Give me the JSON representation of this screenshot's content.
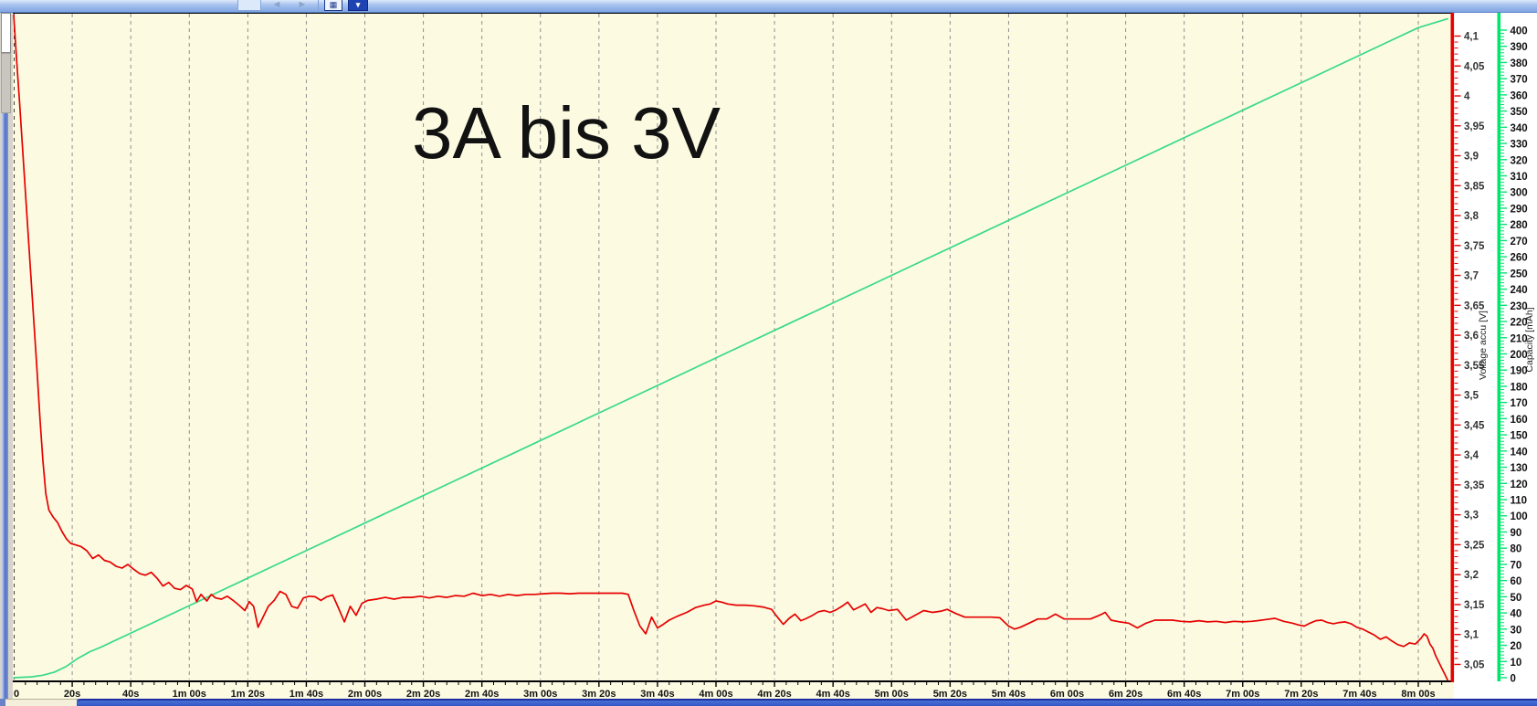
{
  "window": {
    "toolbar": {
      "back_icon": "◄",
      "forward_icon": "►",
      "grid_icon": "▦",
      "overflow_icon": "▾"
    }
  },
  "annotation": {
    "title": "3A bis 3V"
  },
  "colors": {
    "plot_background": "#fcfbe2",
    "voltage_red": "#e60000",
    "capacity_green": "#38d98a",
    "capacity_axis_green": "#00e56e",
    "gridline_gray": "#8f8f8f",
    "axis_black": "#000000",
    "titlebar_blue": "#7fa5e2",
    "taskbar_blue": "#3157c4"
  },
  "chart_data": {
    "type": "line",
    "title": "3A bis 3V",
    "plot_background": "#fcfbe2",
    "grid": "vertical-dashed",
    "x_axis": {
      "unit": "time",
      "range_s": [
        0,
        490
      ],
      "minor_tick_step_s": 4,
      "ticks": [
        {
          "t": 0,
          "label": "0"
        },
        {
          "t": 20,
          "label": "20s"
        },
        {
          "t": 40,
          "label": "40s"
        },
        {
          "t": 60,
          "label": "1m 00s"
        },
        {
          "t": 80,
          "label": "1m 20s"
        },
        {
          "t": 100,
          "label": "1m 40s"
        },
        {
          "t": 120,
          "label": "2m 00s"
        },
        {
          "t": 140,
          "label": "2m 20s"
        },
        {
          "t": 160,
          "label": "2m 40s"
        },
        {
          "t": 180,
          "label": "3m 00s"
        },
        {
          "t": 200,
          "label": "3m 20s"
        },
        {
          "t": 220,
          "label": "3m 40s"
        },
        {
          "t": 240,
          "label": "4m 00s"
        },
        {
          "t": 260,
          "label": "4m 20s"
        },
        {
          "t": 280,
          "label": "4m 40s"
        },
        {
          "t": 300,
          "label": "5m 00s"
        },
        {
          "t": 320,
          "label": "5m 20s"
        },
        {
          "t": 340,
          "label": "5m 40s"
        },
        {
          "t": 360,
          "label": "6m 00s"
        },
        {
          "t": 380,
          "label": "6m 20s"
        },
        {
          "t": 400,
          "label": "6m 40s"
        },
        {
          "t": 420,
          "label": "7m 00s"
        },
        {
          "t": 440,
          "label": "7m 20s"
        },
        {
          "t": 460,
          "label": "7m 40s"
        },
        {
          "t": 480,
          "label": "8m 00s"
        }
      ]
    },
    "voltage_axis": {
      "title": "Voltage accu [V]",
      "color": "#e60000",
      "range": [
        3.02,
        4.138
      ],
      "major_tick_step": 0.05,
      "minor_tick_step": 0.01,
      "ticks": [
        {
          "v": 4.1,
          "label": "4,1"
        },
        {
          "v": 4.05,
          "label": "4,05"
        },
        {
          "v": 4.0,
          "label": "4"
        },
        {
          "v": 3.95,
          "label": "3,95"
        },
        {
          "v": 3.9,
          "label": "3,9"
        },
        {
          "v": 3.85,
          "label": "3,85"
        },
        {
          "v": 3.8,
          "label": "3,8"
        },
        {
          "v": 3.75,
          "label": "3,75"
        },
        {
          "v": 3.7,
          "label": "3,7"
        },
        {
          "v": 3.65,
          "label": "3,65"
        },
        {
          "v": 3.6,
          "label": "3,6"
        },
        {
          "v": 3.55,
          "label": "3,55"
        },
        {
          "v": 3.5,
          "label": "3,5"
        },
        {
          "v": 3.45,
          "label": "3,45"
        },
        {
          "v": 3.4,
          "label": "3,4"
        },
        {
          "v": 3.35,
          "label": "3,35"
        },
        {
          "v": 3.3,
          "label": "3,3"
        },
        {
          "v": 3.25,
          "label": "3,25"
        },
        {
          "v": 3.2,
          "label": "3,2"
        },
        {
          "v": 3.15,
          "label": "3,15"
        },
        {
          "v": 3.1,
          "label": "3,1"
        },
        {
          "v": 3.05,
          "label": "3,05"
        }
      ]
    },
    "capacity_axis": {
      "title": "Capacity [mAh]",
      "color": "#00e56e",
      "range": [
        0,
        411
      ],
      "major_tick_step": 10,
      "minor_tick_step": 2,
      "tick_values": [
        400,
        390,
        380,
        370,
        360,
        350,
        340,
        330,
        320,
        310,
        300,
        290,
        280,
        270,
        260,
        250,
        240,
        230,
        220,
        210,
        200,
        190,
        180,
        170,
        160,
        150,
        140,
        130,
        120,
        110,
        100,
        90,
        80,
        70,
        60,
        50,
        40,
        30,
        20,
        10,
        0
      ]
    },
    "series": [
      {
        "name": "Voltage accu [V]",
        "axis": "voltage",
        "color": "#e60000",
        "points": [
          [
            0,
            4.135
          ],
          [
            1,
            4.06
          ],
          [
            2,
            3.99
          ],
          [
            3,
            3.915
          ],
          [
            4,
            3.84
          ],
          [
            5,
            3.765
          ],
          [
            6,
            3.69
          ],
          [
            7,
            3.615
          ],
          [
            8,
            3.54
          ],
          [
            9,
            3.46
          ],
          [
            10,
            3.39
          ],
          [
            11,
            3.335
          ],
          [
            12,
            3.308
          ],
          [
            13.5,
            3.296
          ],
          [
            15,
            3.287
          ],
          [
            16.5,
            3.272
          ],
          [
            18,
            3.26
          ],
          [
            19.5,
            3.252
          ],
          [
            21,
            3.25
          ],
          [
            23,
            3.247
          ],
          [
            25,
            3.24
          ],
          [
            27,
            3.227
          ],
          [
            29,
            3.233
          ],
          [
            31,
            3.224
          ],
          [
            33,
            3.221
          ],
          [
            35,
            3.214
          ],
          [
            37,
            3.211
          ],
          [
            39,
            3.217
          ],
          [
            41,
            3.209
          ],
          [
            43,
            3.202
          ],
          [
            45,
            3.199
          ],
          [
            47,
            3.204
          ],
          [
            49,
            3.194
          ],
          [
            51,
            3.181
          ],
          [
            53,
            3.187
          ],
          [
            55,
            3.177
          ],
          [
            57,
            3.175
          ],
          [
            59,
            3.182
          ],
          [
            61,
            3.176
          ],
          [
            62.5,
            3.155
          ],
          [
            64,
            3.167
          ],
          [
            66,
            3.156
          ],
          [
            67.5,
            3.167
          ],
          [
            69,
            3.161
          ],
          [
            71,
            3.159
          ],
          [
            73,
            3.164
          ],
          [
            75,
            3.157
          ],
          [
            77,
            3.149
          ],
          [
            79,
            3.14
          ],
          [
            80.5,
            3.155
          ],
          [
            82,
            3.147
          ],
          [
            83.5,
            3.112
          ],
          [
            85,
            3.127
          ],
          [
            87,
            3.147
          ],
          [
            89,
            3.157
          ],
          [
            91,
            3.172
          ],
          [
            93,
            3.167
          ],
          [
            95,
            3.147
          ],
          [
            97,
            3.144
          ],
          [
            99,
            3.161
          ],
          [
            101,
            3.164
          ],
          [
            103,
            3.163
          ],
          [
            105,
            3.157
          ],
          [
            107,
            3.163
          ],
          [
            109,
            3.166
          ],
          [
            111,
            3.144
          ],
          [
            113,
            3.121
          ],
          [
            115,
            3.147
          ],
          [
            117,
            3.132
          ],
          [
            119,
            3.152
          ],
          [
            121,
            3.157
          ],
          [
            124,
            3.159
          ],
          [
            127,
            3.162
          ],
          [
            130,
            3.159
          ],
          [
            133,
            3.162
          ],
          [
            136,
            3.162
          ],
          [
            139,
            3.164
          ],
          [
            142,
            3.161
          ],
          [
            145,
            3.164
          ],
          [
            148,
            3.162
          ],
          [
            151,
            3.165
          ],
          [
            154,
            3.164
          ],
          [
            157,
            3.169
          ],
          [
            160,
            3.165
          ],
          [
            163,
            3.167
          ],
          [
            166,
            3.164
          ],
          [
            169,
            3.167
          ],
          [
            172,
            3.165
          ],
          [
            175,
            3.167
          ],
          [
            178,
            3.167
          ],
          [
            181,
            3.168
          ],
          [
            184,
            3.169
          ],
          [
            187,
            3.169
          ],
          [
            190,
            3.168
          ],
          [
            193,
            3.169
          ],
          [
            196,
            3.169
          ],
          [
            199,
            3.169
          ],
          [
            202,
            3.169
          ],
          [
            205,
            3.169
          ],
          [
            208,
            3.169
          ],
          [
            210,
            3.167
          ],
          [
            212,
            3.139
          ],
          [
            214,
            3.114
          ],
          [
            216,
            3.101
          ],
          [
            218,
            3.129
          ],
          [
            220,
            3.111
          ],
          [
            222,
            3.117
          ],
          [
            224,
            3.124
          ],
          [
            227,
            3.131
          ],
          [
            230,
            3.137
          ],
          [
            233,
            3.145
          ],
          [
            236,
            3.149
          ],
          [
            238,
            3.151
          ],
          [
            240,
            3.156
          ],
          [
            242,
            3.154
          ],
          [
            244,
            3.151
          ],
          [
            247,
            3.149
          ],
          [
            250,
            3.149
          ],
          [
            253,
            3.148
          ],
          [
            256,
            3.146
          ],
          [
            259,
            3.142
          ],
          [
            261,
            3.129
          ],
          [
            263,
            3.117
          ],
          [
            265,
            3.127
          ],
          [
            267,
            3.134
          ],
          [
            269,
            3.123
          ],
          [
            271,
            3.127
          ],
          [
            273,
            3.132
          ],
          [
            275,
            3.138
          ],
          [
            277,
            3.14
          ],
          [
            279,
            3.137
          ],
          [
            281,
            3.141
          ],
          [
            283,
            3.147
          ],
          [
            285,
            3.154
          ],
          [
            287,
            3.141
          ],
          [
            289,
            3.146
          ],
          [
            291,
            3.151
          ],
          [
            293,
            3.137
          ],
          [
            295,
            3.145
          ],
          [
            297,
            3.143
          ],
          [
            299,
            3.14
          ],
          [
            302,
            3.142
          ],
          [
            305,
            3.124
          ],
          [
            308,
            3.132
          ],
          [
            311,
            3.14
          ],
          [
            314,
            3.137
          ],
          [
            317,
            3.139
          ],
          [
            319,
            3.142
          ],
          [
            322,
            3.135
          ],
          [
            325,
            3.129
          ],
          [
            328,
            3.129
          ],
          [
            331,
            3.129
          ],
          [
            334,
            3.129
          ],
          [
            337,
            3.128
          ],
          [
            340,
            3.114
          ],
          [
            342,
            3.109
          ],
          [
            344,
            3.112
          ],
          [
            347,
            3.119
          ],
          [
            350,
            3.126
          ],
          [
            353,
            3.126
          ],
          [
            356,
            3.134
          ],
          [
            359,
            3.126
          ],
          [
            362,
            3.126
          ],
          [
            365,
            3.126
          ],
          [
            368,
            3.126
          ],
          [
            371,
            3.132
          ],
          [
            373,
            3.137
          ],
          [
            375,
            3.124
          ],
          [
            378,
            3.121
          ],
          [
            381,
            3.119
          ],
          [
            384,
            3.111
          ],
          [
            387,
            3.119
          ],
          [
            390,
            3.124
          ],
          [
            393,
            3.124
          ],
          [
            396,
            3.124
          ],
          [
            399,
            3.122
          ],
          [
            402,
            3.121
          ],
          [
            405,
            3.123
          ],
          [
            408,
            3.121
          ],
          [
            411,
            3.122
          ],
          [
            414,
            3.12
          ],
          [
            417,
            3.122
          ],
          [
            420,
            3.121
          ],
          [
            423,
            3.122
          ],
          [
            425,
            3.123
          ],
          [
            428,
            3.125
          ],
          [
            431,
            3.127
          ],
          [
            434,
            3.122
          ],
          [
            437,
            3.119
          ],
          [
            439,
            3.116
          ],
          [
            441,
            3.114
          ],
          [
            443,
            3.119
          ],
          [
            445,
            3.123
          ],
          [
            447,
            3.124
          ],
          [
            449,
            3.12
          ],
          [
            451,
            3.118
          ],
          [
            453,
            3.12
          ],
          [
            455,
            3.121
          ],
          [
            457,
            3.118
          ],
          [
            459,
            3.112
          ],
          [
            461,
            3.109
          ],
          [
            463,
            3.104
          ],
          [
            465,
            3.099
          ],
          [
            467,
            3.092
          ],
          [
            469,
            3.096
          ],
          [
            471,
            3.089
          ],
          [
            473,
            3.083
          ],
          [
            475,
            3.08
          ],
          [
            477,
            3.086
          ],
          [
            479,
            3.084
          ],
          [
            481,
            3.094
          ],
          [
            482,
            3.101
          ],
          [
            483,
            3.097
          ],
          [
            484,
            3.084
          ],
          [
            485,
            3.077
          ],
          [
            486,
            3.064
          ],
          [
            487,
            3.054
          ],
          [
            488,
            3.044
          ],
          [
            489,
            3.034
          ],
          [
            490,
            3.024
          ]
        ]
      },
      {
        "name": "Capacity [mAh]",
        "axis": "capacity",
        "color": "#38d98a",
        "points": [
          [
            0,
            0
          ],
          [
            6,
            0.5
          ],
          [
            10,
            1.5
          ],
          [
            14,
            3.5
          ],
          [
            18,
            7
          ],
          [
            22,
            12
          ],
          [
            26,
            16
          ],
          [
            30,
            19
          ],
          [
            60,
            44.5
          ],
          [
            90,
            70
          ],
          [
            120,
            95.5
          ],
          [
            150,
            121
          ],
          [
            180,
            146.5
          ],
          [
            210,
            172
          ],
          [
            240,
            197.5
          ],
          [
            270,
            223
          ],
          [
            300,
            248.5
          ],
          [
            330,
            274
          ],
          [
            360,
            299.5
          ],
          [
            390,
            325
          ],
          [
            420,
            350.5
          ],
          [
            450,
            376
          ],
          [
            480,
            401.5
          ],
          [
            490,
            407
          ]
        ]
      }
    ]
  }
}
